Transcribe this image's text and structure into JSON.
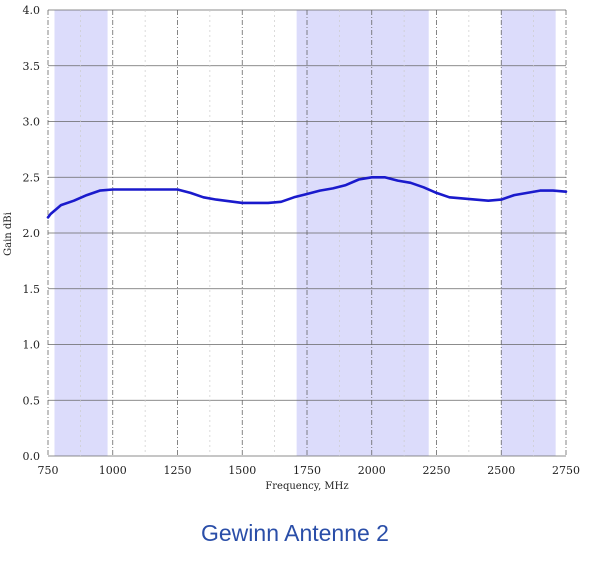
{
  "caption": "Gewinn Antenne 2",
  "chart_data": {
    "type": "line",
    "xlabel": "Frequency, MHz",
    "ylabel": "Gain dBi",
    "xlim": [
      750,
      2750
    ],
    "ylim": [
      0,
      4
    ],
    "xticks": [
      750,
      1000,
      1250,
      1500,
      1750,
      2000,
      2250,
      2500,
      2750
    ],
    "yticks": [
      "0.0",
      "0.5",
      "1.0",
      "1.5",
      "2.0",
      "2.5",
      "3.0",
      "3.5",
      "4.0"
    ],
    "grid": true,
    "bands": [
      [
        775,
        980
      ],
      [
        1710,
        2220
      ],
      [
        2500,
        2710
      ]
    ],
    "colors": {
      "line": "#1a1acc",
      "band": "#dcdcfb",
      "grid_major": "#666666",
      "caption": "#2a4ea8"
    },
    "series": [
      {
        "x": [
          750,
          760,
          800,
          850,
          900,
          950,
          1000,
          1100,
          1200,
          1250,
          1300,
          1350,
          1400,
          1500,
          1550,
          1600,
          1650,
          1700,
          1750,
          1800,
          1850,
          1900,
          1950,
          2000,
          2050,
          2100,
          2150,
          2200,
          2250,
          2300,
          2350,
          2400,
          2450,
          2500,
          2550,
          2600,
          2650,
          2700,
          2750
        ],
        "y": [
          2.14,
          2.17,
          2.25,
          2.29,
          2.34,
          2.38,
          2.39,
          2.39,
          2.39,
          2.39,
          2.36,
          2.32,
          2.3,
          2.27,
          2.27,
          2.27,
          2.28,
          2.32,
          2.35,
          2.38,
          2.4,
          2.43,
          2.48,
          2.5,
          2.5,
          2.47,
          2.45,
          2.41,
          2.36,
          2.32,
          2.31,
          2.3,
          2.29,
          2.3,
          2.34,
          2.36,
          2.38,
          2.38,
          2.37
        ]
      }
    ]
  }
}
